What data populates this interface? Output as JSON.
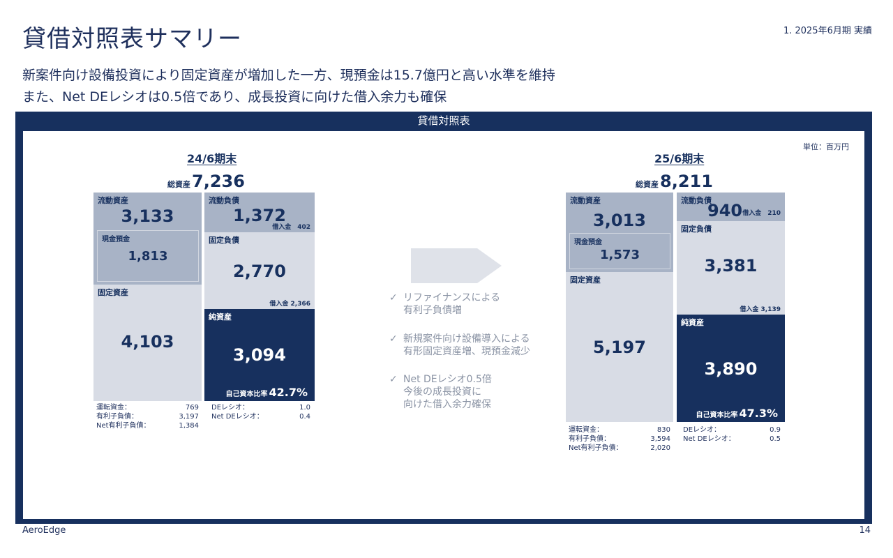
{
  "header": {
    "title": "貸借対照表サマリー",
    "section": "1. 2025年6月期 実績",
    "subtitle_line1": "新案件向け設備投資により固定資産が増加した一方、現預金は15.7億円と高い水準を維持",
    "subtitle_line2": "また、Net DEレシオは0.5倍であり、成長投資に向けた借入余力も確保"
  },
  "panel": {
    "title": "貸借対照表",
    "unit": "単位：百万円"
  },
  "labels": {
    "total_assets": "総資産",
    "current_assets": "流動資産",
    "cash": "現金預金",
    "fixed_assets": "固定資産",
    "current_liabilities": "流動負債",
    "fixed_liabilities": "固定負債",
    "net_assets": "純資産",
    "equity_ratio": "自己資本比率",
    "working_capital": "運転資金：",
    "interest_bearing_debt": "有利子負債：",
    "net_interest_bearing_debt": "Net有利子負債：",
    "de_ratio": "DEレシオ：",
    "net_de_ratio": "Net DEレシオ："
  },
  "bs_2024": {
    "period": "24/6期末",
    "total_assets": "7,236",
    "current_assets": "3,133",
    "cash": "1,813",
    "fixed_assets": "4,103",
    "current_liabilities": "1,372",
    "current_borrowings": "借入金　402",
    "fixed_liabilities": "2,770",
    "fixed_borrowings": "借入金 2,366",
    "net_assets": "3,094",
    "equity_ratio": "42.7%",
    "working_capital": "769",
    "interest_bearing_debt": "3,197",
    "net_interest_bearing_debt": "1,384",
    "de_ratio": "1.0",
    "net_de_ratio": "0.4"
  },
  "bs_2025": {
    "period": "25/6期末",
    "total_assets": "8,211",
    "current_assets": "3,013",
    "cash": "1,573",
    "fixed_assets": "5,197",
    "current_liabilities": "940",
    "current_borrowings": "借入金　210",
    "fixed_liabilities": "3,381",
    "fixed_borrowings": "借入金 3,139",
    "net_assets": "3,890",
    "equity_ratio": "47.3%",
    "working_capital": "830",
    "interest_bearing_debt": "3,594",
    "net_interest_bearing_debt": "2,020",
    "de_ratio": "0.9",
    "net_de_ratio": "0.5"
  },
  "bullets": [
    {
      "line1": "リファイナンスによる",
      "line2": "有利子負債増"
    },
    {
      "line1": "新規案件向け設備導入による",
      "line2": "有形固定資産増、現預金減少"
    },
    {
      "line1": "Net DEレシオ0.5倍",
      "line2": "今後の成長投資に",
      "line3": "向けた借入余力確保"
    }
  ],
  "bullet_mark": "✓",
  "footer": {
    "brand": "AeroEdge",
    "page": "14"
  },
  "colors": {
    "navy": "#17305e",
    "current_block": "#a8b3c6",
    "fixed_block": "#d8dce5",
    "arrow": "#dfe2e9"
  }
}
